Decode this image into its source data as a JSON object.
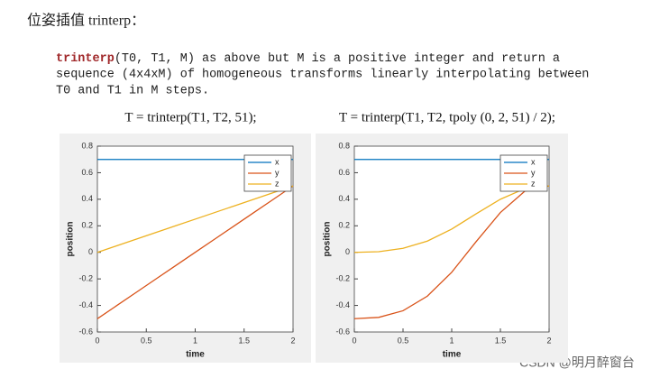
{
  "heading": "位姿插值 trinterp：",
  "description": {
    "function": "trinterp",
    "lines": [
      "(T0, T1, M) as above but M is a positive integer and return a",
      "sequence (4x4xM) of homogeneous transforms linearly interpolating between",
      "T0 and T1 in M steps."
    ]
  },
  "chart_data": [
    {
      "type": "line",
      "title": "T = trinterp(T1, T2, 51);",
      "xlabel": "time",
      "ylabel": "position",
      "x": [
        0,
        0.2,
        0.4,
        0.6,
        0.8,
        1,
        1.2,
        1.4,
        1.6,
        1.8,
        2
      ],
      "series": [
        {
          "name": "x",
          "color": "#0072bd",
          "values": [
            0.7,
            0.7,
            0.7,
            0.7,
            0.7,
            0.7,
            0.7,
            0.7,
            0.7,
            0.7,
            0.7
          ]
        },
        {
          "name": "y",
          "color": "#d95319",
          "values": [
            -0.5,
            -0.4,
            -0.3,
            -0.2,
            -0.1,
            0,
            0.1,
            0.2,
            0.3,
            0.4,
            0.5
          ]
        },
        {
          "name": "z",
          "color": "#edb120",
          "values": [
            0,
            0.05,
            0.1,
            0.15,
            0.2,
            0.25,
            0.3,
            0.35,
            0.4,
            0.45,
            0.5
          ]
        }
      ],
      "xlim": [
        0,
        2
      ],
      "ylim": [
        -0.6,
        0.8
      ],
      "xticks": [
        0,
        0.5,
        1,
        1.5,
        2
      ],
      "yticks": [
        -0.6,
        -0.4,
        -0.2,
        0,
        0.2,
        0.4,
        0.6,
        0.8
      ],
      "legend": "upper right"
    },
    {
      "type": "line",
      "title": "T = trinterp(T1, T2, tpoly (0, 2, 51) / 2);",
      "xlabel": "time",
      "ylabel": "position",
      "x": [
        0,
        0.25,
        0.5,
        0.75,
        1,
        1.25,
        1.5,
        1.75,
        2
      ],
      "series": [
        {
          "name": "x",
          "color": "#0072bd",
          "values": [
            0.7,
            0.7,
            0.7,
            0.7,
            0.7,
            0.7,
            0.7,
            0.7,
            0.7
          ]
        },
        {
          "name": "y",
          "color": "#d95319",
          "values": [
            -0.5,
            -0.49,
            -0.44,
            -0.33,
            -0.15,
            0.08,
            0.3,
            0.46,
            0.5
          ]
        },
        {
          "name": "z",
          "color": "#edb120",
          "values": [
            0,
            0.005,
            0.03,
            0.085,
            0.175,
            0.29,
            0.4,
            0.48,
            0.5
          ]
        }
      ],
      "xlim": [
        0,
        2
      ],
      "ylim": [
        -0.6,
        0.8
      ],
      "xticks": [
        0,
        0.5,
        1,
        1.5,
        2
      ],
      "yticks": [
        -0.6,
        -0.4,
        -0.2,
        0,
        0.2,
        0.4,
        0.6,
        0.8
      ],
      "legend": "upper right"
    }
  ],
  "watermark": "CSDN @明月醉窗台"
}
